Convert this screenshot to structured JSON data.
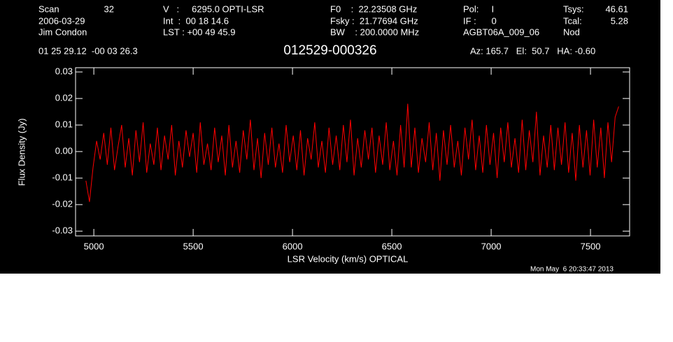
{
  "chart_data": {
    "type": "line",
    "title": "012529-000326",
    "annotations": [
      "Scan",
      "32",
      "2006-03-29",
      "Jim Condon",
      "V   :     6295.0 OPTI-LSR",
      "Int  :  00 18 14.6",
      "LST : +00 49 45.9",
      "F0    :  22.23508 GHz",
      "Fsky :  21.77694 GHz",
      "BW    : 200.0000 MHz",
      "Pol:     I",
      "IF :      0",
      "AGBT06A_009_06",
      "Tsys:",
      "46.61",
      "Tcal:",
      "5.28",
      "Nod",
      "01 25 29.12  -00 03 26.3",
      "Az: 165.7   El:  50.7   HA: -0.60",
      "Mon May  6 20:33:47 2013"
    ],
    "xlabel": "LSR Velocity (km/s) OPTICAL",
    "ylabel": "Flux Density (Jy)",
    "color": "#ff0000",
    "x": [
      4960,
      4978,
      4996,
      5014,
      5032,
      5050,
      5068,
      5086,
      5104,
      5122,
      5140,
      5158,
      5176,
      5194,
      5212,
      5230,
      5248,
      5266,
      5284,
      5302,
      5320,
      5338,
      5356,
      5374,
      5392,
      5410,
      5428,
      5446,
      5464,
      5482,
      5500,
      5518,
      5536,
      5554,
      5572,
      5590,
      5608,
      5626,
      5644,
      5662,
      5680,
      5698,
      5716,
      5734,
      5752,
      5770,
      5788,
      5806,
      5824,
      5842,
      5860,
      5878,
      5896,
      5914,
      5932,
      5950,
      5968,
      5986,
      6004,
      6022,
      6040,
      6058,
      6076,
      6094,
      6112,
      6130,
      6148,
      6166,
      6184,
      6202,
      6220,
      6238,
      6256,
      6274,
      6292,
      6310,
      6328,
      6346,
      6364,
      6382,
      6400,
      6418,
      6436,
      6454,
      6472,
      6490,
      6508,
      6526,
      6544,
      6562,
      6580,
      6598,
      6616,
      6634,
      6652,
      6670,
      6688,
      6706,
      6724,
      6742,
      6760,
      6778,
      6796,
      6814,
      6832,
      6850,
      6868,
      6886,
      6904,
      6922,
      6940,
      6958,
      6976,
      6994,
      7012,
      7030,
      7048,
      7066,
      7084,
      7102,
      7120,
      7138,
      7156,
      7174,
      7192,
      7210,
      7228,
      7246,
      7264,
      7282,
      7300,
      7318,
      7336,
      7354,
      7372,
      7390,
      7408,
      7426,
      7444,
      7462,
      7480,
      7498,
      7516,
      7534,
      7552,
      7570,
      7588,
      7606,
      7624,
      7642
    ],
    "values": [
      -0.011,
      -0.019,
      -0.006,
      0.004,
      -0.003,
      0.007,
      -0.005,
      0.009,
      -0.007,
      0.002,
      0.01,
      -0.006,
      0.005,
      -0.009,
      0.008,
      -0.004,
      0.011,
      -0.008,
      0.003,
      -0.005,
      0.009,
      -0.007,
      0.006,
      -0.003,
      0.01,
      -0.009,
      0.004,
      -0.006,
      0.008,
      -0.002,
      0.007,
      -0.008,
      0.011,
      -0.005,
      0.003,
      -0.007,
      0.009,
      -0.004,
      0.006,
      -0.009,
      0.01,
      -0.006,
      0.004,
      -0.008,
      0.008,
      -0.003,
      0.012,
      -0.007,
      0.005,
      -0.01,
      0.007,
      -0.005,
      0.009,
      -0.006,
      0.003,
      -0.008,
      0.01,
      -0.004,
      0.006,
      -0.007,
      0.008,
      -0.009,
      0.005,
      -0.003,
      0.011,
      -0.006,
      0.004,
      -0.008,
      0.009,
      -0.005,
      0.006,
      -0.007,
      0.01,
      -0.004,
      0.012,
      -0.009,
      0.005,
      -0.006,
      0.008,
      -0.003,
      0.009,
      -0.008,
      0.006,
      -0.005,
      0.011,
      -0.007,
      0.004,
      -0.009,
      0.01,
      -0.006,
      0.018,
      -0.006,
      0.009,
      -0.008,
      0.005,
      -0.004,
      0.011,
      -0.007,
      0.007,
      -0.011,
      0.008,
      -0.005,
      0.01,
      -0.006,
      0.004,
      -0.009,
      0.009,
      -0.003,
      0.012,
      -0.007,
      0.006,
      -0.008,
      0.01,
      -0.005,
      0.007,
      -0.01,
      0.009,
      -0.004,
      0.011,
      -0.006,
      0.005,
      -0.008,
      0.012,
      -0.007,
      0.008,
      -0.004,
      0.015,
      -0.009,
      0.006,
      -0.006,
      0.01,
      -0.007,
      0.009,
      -0.005,
      0.011,
      -0.008,
      0.007,
      -0.011,
      0.01,
      -0.006,
      0.008,
      -0.009,
      0.012,
      -0.006,
      0.009,
      -0.01,
      0.011,
      -0.004,
      0.013,
      0.017
    ],
    "xlim": [
      4908,
      7697
    ],
    "ylim": [
      -0.0318,
      0.0316
    ],
    "xticks": [
      5000,
      5500,
      6000,
      6500,
      7000,
      7500
    ],
    "yticks": [
      -0.03,
      -0.02,
      -0.01,
      {
        "value": 0,
        "label": "0.00"
      },
      0.01,
      0.02,
      0.03
    ]
  }
}
